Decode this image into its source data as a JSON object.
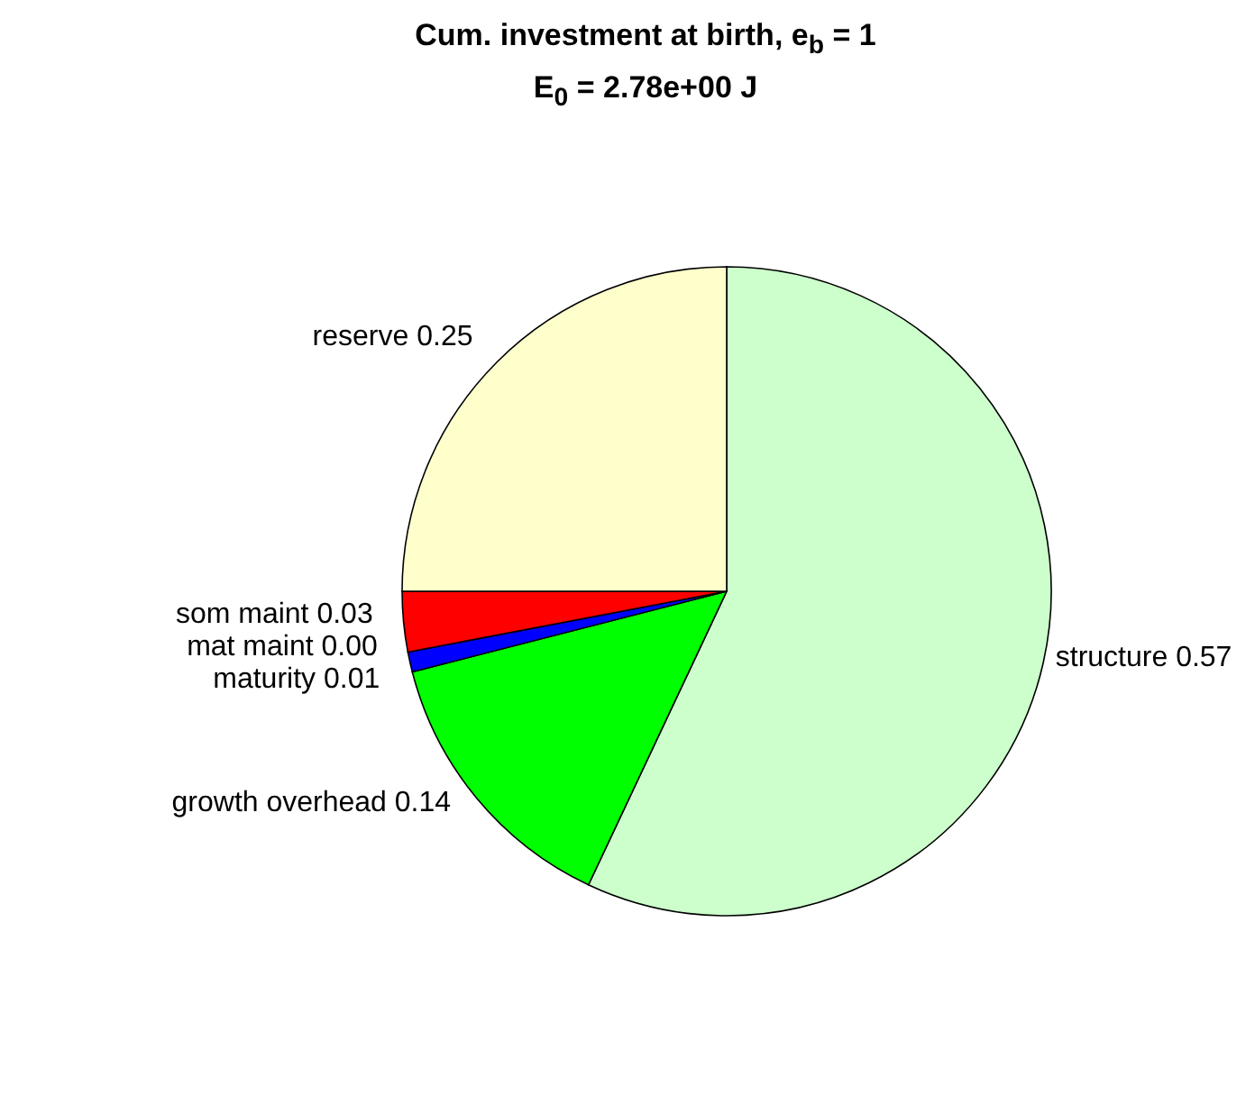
{
  "chart_data": {
    "type": "pie",
    "title": "Cum. investment at birth, e$_{b}$ = 1",
    "subtitle": "E$_{0}$ = 2.78e+00 J",
    "categories": [
      "structure",
      "growth overhead",
      "maturity",
      "mat maint",
      "som maint",
      "reserve"
    ],
    "values": [
      0.57,
      0.14,
      0.01,
      0.0,
      0.03,
      0.25
    ],
    "value_labels": [
      "0.57",
      "0.14",
      "0.01",
      "0.00",
      "0.03",
      "0.25"
    ],
    "colors": [
      "#ccffcc",
      "#00ff00",
      "#0000ff",
      "#00ffff",
      "#ff0000",
      "#ffffcc"
    ]
  }
}
